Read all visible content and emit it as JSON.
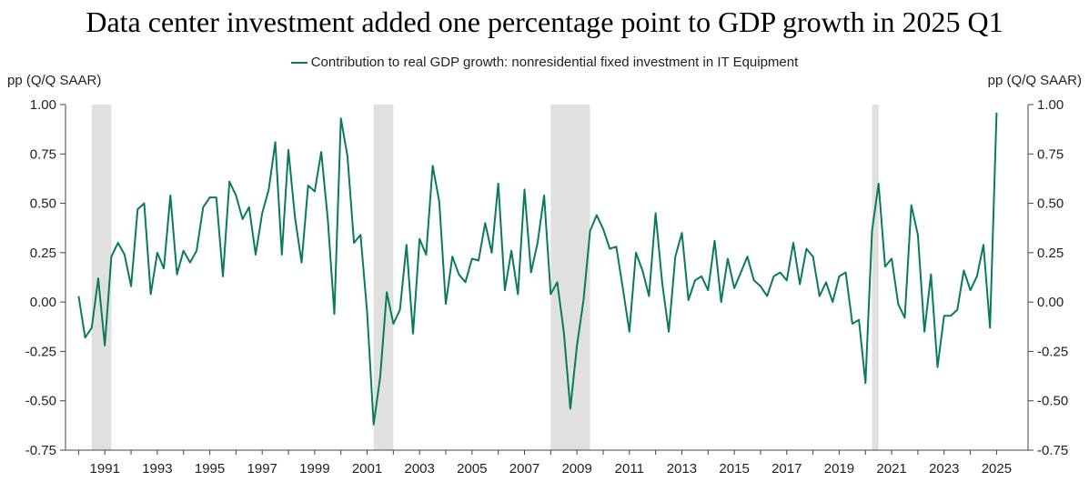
{
  "chart_data": {
    "type": "line",
    "title": "Data center investment added one percentage point to GDP growth in 2025 Q1",
    "ylabel_left": "pp (Q/Q SAAR)",
    "ylabel_right": "pp (Q/Q SAAR)",
    "ylim": [
      -0.75,
      1.0
    ],
    "yticks": [
      "1.00",
      "0.75",
      "0.50",
      "0.25",
      "0.00",
      "-0.25",
      "-0.50",
      "-0.75"
    ],
    "xticks": [
      "1991",
      "1993",
      "1995",
      "1997",
      "1999",
      "2001",
      "2003",
      "2005",
      "2007",
      "2009",
      "2011",
      "2013",
      "2015",
      "2017",
      "2019",
      "2021",
      "2023",
      "2025"
    ],
    "legend_position": "top-center",
    "recessions": [
      [
        1990.5,
        1991.25
      ],
      [
        2001.25,
        2002.0
      ],
      [
        2008.0,
        2009.5
      ],
      [
        2020.25,
        2020.5
      ]
    ],
    "series": [
      {
        "name": "Contribution to real GDP growth: nonresidential fixed investment in IT Equipment",
        "color": "#0b7a5c",
        "start": 1990.0,
        "step": 0.25,
        "values": [
          0.03,
          -0.18,
          -0.13,
          0.12,
          -0.22,
          0.23,
          0.3,
          0.24,
          0.08,
          0.47,
          0.5,
          0.04,
          0.25,
          0.17,
          0.54,
          0.14,
          0.26,
          0.2,
          0.26,
          0.48,
          0.53,
          0.53,
          0.13,
          0.61,
          0.54,
          0.42,
          0.48,
          0.24,
          0.45,
          0.57,
          0.81,
          0.24,
          0.77,
          0.43,
          0.2,
          0.59,
          0.56,
          0.76,
          0.42,
          -0.06,
          0.93,
          0.74,
          0.3,
          0.34,
          -0.05,
          -0.62,
          -0.38,
          0.05,
          -0.11,
          -0.04,
          0.29,
          -0.16,
          0.32,
          0.24,
          0.69,
          0.51,
          -0.01,
          0.23,
          0.14,
          0.1,
          0.22,
          0.21,
          0.4,
          0.25,
          0.6,
          0.06,
          0.26,
          0.04,
          0.57,
          0.15,
          0.3,
          0.54,
          0.04,
          0.1,
          -0.15,
          -0.54,
          -0.22,
          0.01,
          0.36,
          0.44,
          0.37,
          0.27,
          0.28,
          0.07,
          -0.15,
          0.25,
          0.16,
          0.03,
          0.45,
          0.1,
          -0.15,
          0.23,
          0.35,
          0.01,
          0.11,
          0.13,
          0.06,
          0.31,
          0.0,
          0.22,
          0.07,
          0.15,
          0.23,
          0.11,
          0.08,
          0.03,
          0.13,
          0.15,
          0.11,
          0.3,
          0.09,
          0.27,
          0.23,
          0.03,
          0.1,
          0.0,
          0.13,
          0.15,
          -0.11,
          -0.09,
          -0.41,
          0.36,
          0.6,
          0.18,
          0.22,
          -0.01,
          -0.08,
          0.49,
          0.34,
          -0.15,
          0.14,
          -0.33,
          -0.07,
          -0.07,
          -0.04,
          0.16,
          0.06,
          0.13,
          0.29,
          -0.13,
          0.96
        ]
      }
    ]
  }
}
